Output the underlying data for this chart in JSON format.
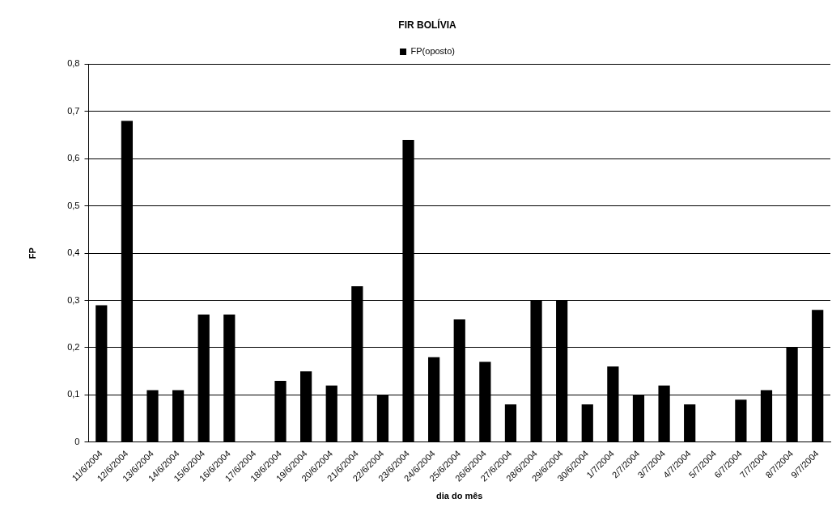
{
  "chart_data": {
    "type": "bar",
    "title": "FIR BOLÍVIA",
    "xlabel": "dia do mês",
    "ylabel": "FP",
    "categories": [
      "11/6/2004",
      "12/6/2004",
      "13/6/2004",
      "14/6/2004",
      "15/6/2004",
      "16/6/2004",
      "17/6/2004",
      "18/6/2004",
      "19/6/2004",
      "20/6/2004",
      "21/6/2004",
      "22/6/2004",
      "23/6/2004",
      "24/6/2004",
      "25/6/2004",
      "26/6/2004",
      "27/6/2004",
      "28/6/2004",
      "29/6/2004",
      "30/6/2004",
      "1/7/2004",
      "2/7/2004",
      "3/7/2004",
      "4/7/2004",
      "5/7/2004",
      "6/7/2004",
      "7/7/2004",
      "8/7/2004",
      "9/7/2004"
    ],
    "series": [
      {
        "name": "FP(oposto)",
        "color": "#000000",
        "values": [
          0.29,
          0.68,
          0.11,
          0.11,
          0.27,
          0.27,
          0,
          0.13,
          0.15,
          0.12,
          0.33,
          0.1,
          0.64,
          0.18,
          0.26,
          0.17,
          0.08,
          0.3,
          0.3,
          0.08,
          0.16,
          0.1,
          0.12,
          0.08,
          0,
          0.09,
          0.11,
          0.2,
          0.28
        ]
      }
    ],
    "ylim": [
      0,
      0.8
    ],
    "yticks": [
      0,
      {
        "value": 0.1,
        "label": "0,1"
      },
      {
        "value": 0.2,
        "label": "0,2"
      },
      {
        "value": 0.3,
        "label": "0,3"
      },
      {
        "value": 0.4,
        "label": "0,4"
      },
      {
        "value": 0.5,
        "label": "0,5"
      },
      {
        "value": 0.6,
        "label": "0,6"
      },
      {
        "value": 0.7,
        "label": "0,7"
      },
      {
        "value": 0.8,
        "label": "0,8"
      }
    ],
    "grid": "y",
    "legend": "top"
  }
}
